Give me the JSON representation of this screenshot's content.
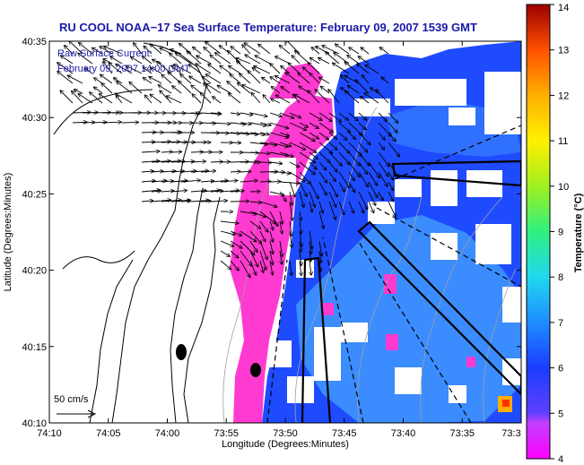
{
  "title": "RU COOL  NOAA−17  Sea Surface Temperature:  February 09, 2007 1539 GMT",
  "legend": {
    "line1": "Raw Surface Current:",
    "line2": "February 09, 2007 14:00 GMT"
  },
  "scale_label": "50 cm/s",
  "x_axis": {
    "label": "Longitude (Degrees:Minutes)",
    "ticks": [
      "74:10",
      "74:05",
      "74:00",
      "73:55",
      "73:50",
      "73:45",
      "73:40",
      "73:35",
      "73:3"
    ]
  },
  "y_axis": {
    "label": "Latitude (Degrees:Minutes)",
    "ticks": [
      "40:35",
      "40:30",
      "40:25",
      "40:20",
      "40:15",
      "40:10"
    ]
  },
  "colorbar": {
    "label": "Temperature (°C)",
    "ticks": [
      "14",
      "13",
      "12",
      "11",
      "10",
      "9",
      "8",
      "7",
      "6",
      "5",
      "4"
    ],
    "min": 4,
    "max": 14
  },
  "colors": {
    "title": "#1a1aa8",
    "magenta": "#ff3ad0",
    "blue": "#1f4bff",
    "lightblue": "#3aa0ff",
    "dark_blue": "#1428d8"
  }
}
